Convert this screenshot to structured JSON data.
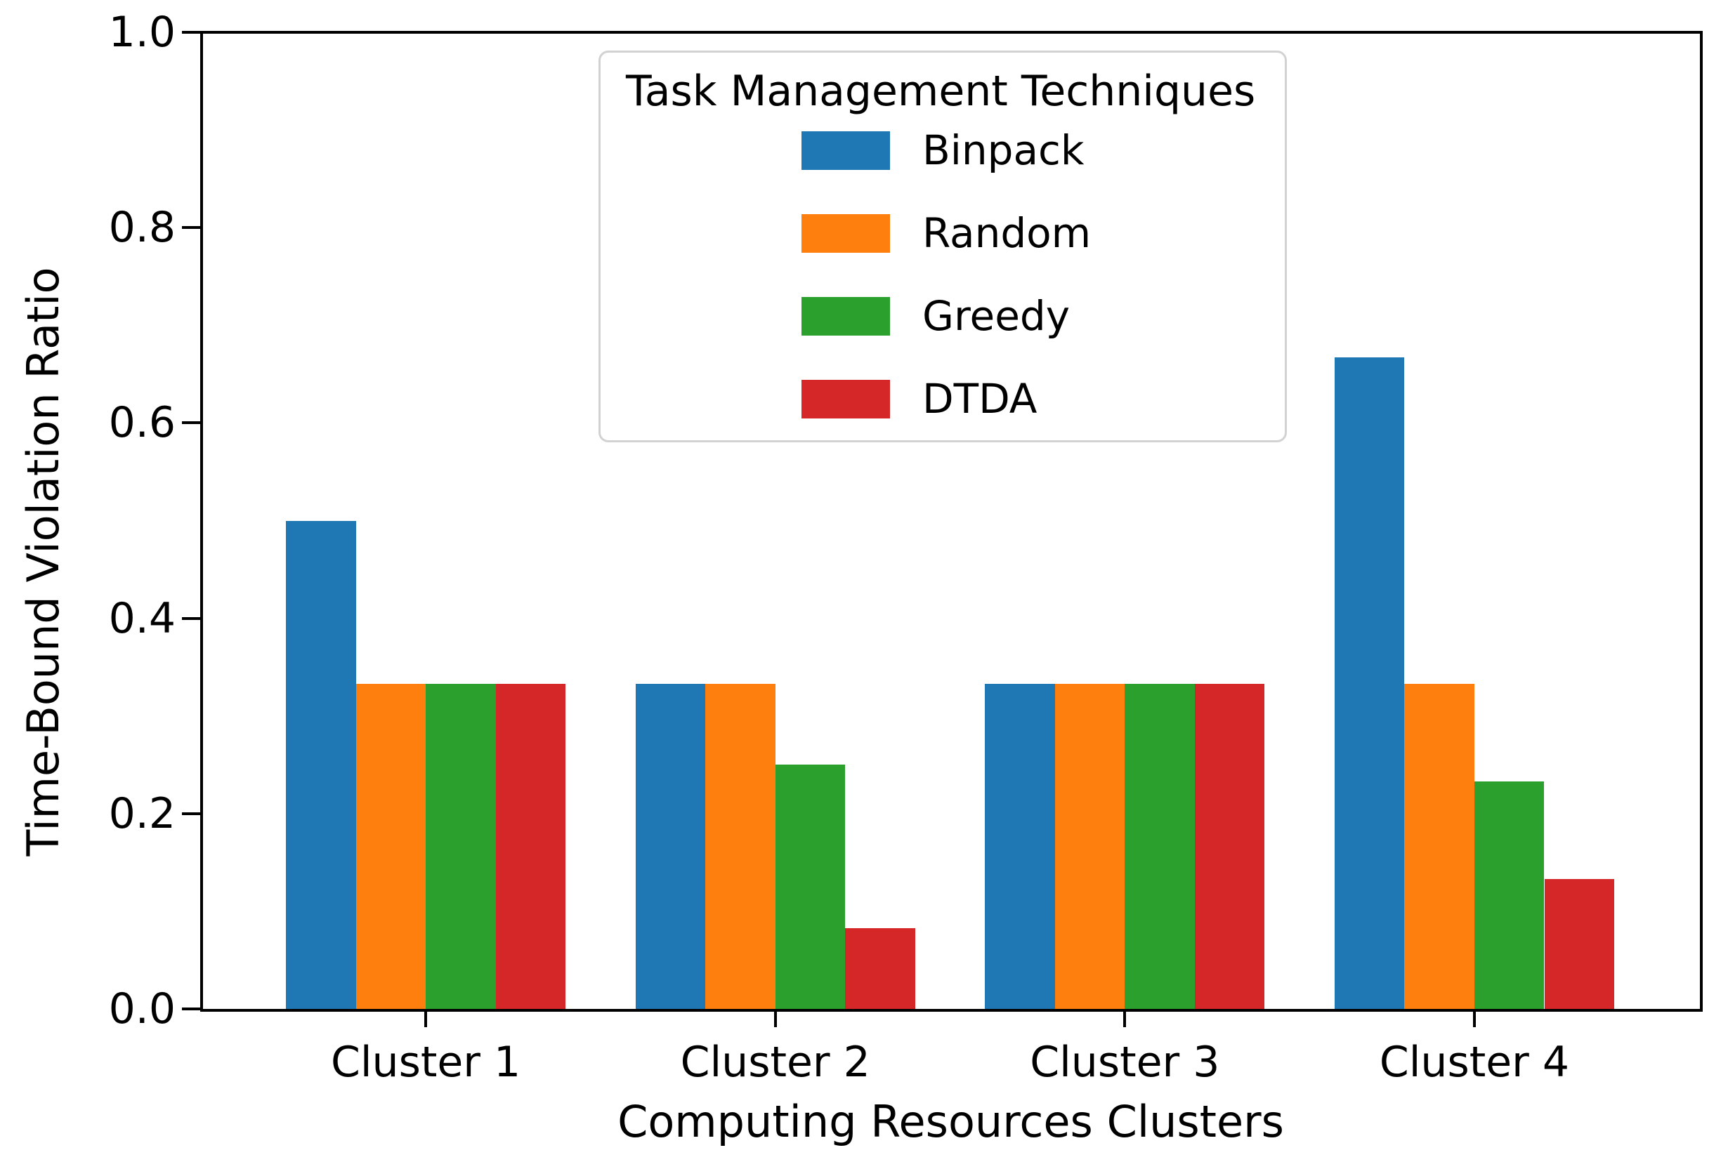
{
  "figure": {
    "background": "#ffffff",
    "spine_color": "#000000"
  },
  "chart_data": {
    "type": "bar",
    "title": "",
    "xlabel": "Computing Resources Clusters",
    "ylabel": "Time-Bound Violation Ratio",
    "categories": [
      "Cluster 1",
      "Cluster 2",
      "Cluster 3",
      "Cluster 4"
    ],
    "series": [
      {
        "name": "Binpack",
        "color": "#1f77b4",
        "values": [
          0.5,
          0.333,
          0.333,
          0.667
        ]
      },
      {
        "name": "Random",
        "color": "#ff7f0e",
        "values": [
          0.333,
          0.333,
          0.333,
          0.333
        ]
      },
      {
        "name": "Greedy",
        "color": "#2ca02c",
        "values": [
          0.333,
          0.25,
          0.333,
          0.233
        ]
      },
      {
        "name": "DTDA",
        "color": "#d62728",
        "values": [
          0.333,
          0.083,
          0.333,
          0.133
        ]
      }
    ],
    "legend": {
      "title": "Task Management Techniques",
      "entries": [
        "Binpack",
        "Random",
        "Greedy",
        "DTDA"
      ],
      "position": "upper center"
    },
    "axes": {
      "ylim": [
        0,
        1
      ],
      "yticks": [
        0.0,
        0.2,
        0.4,
        0.6,
        0.8,
        1.0
      ],
      "ytick_labels": [
        "0.0",
        "0.2",
        "0.4",
        "0.6",
        "0.8",
        "1.0"
      ],
      "grid": false
    }
  }
}
